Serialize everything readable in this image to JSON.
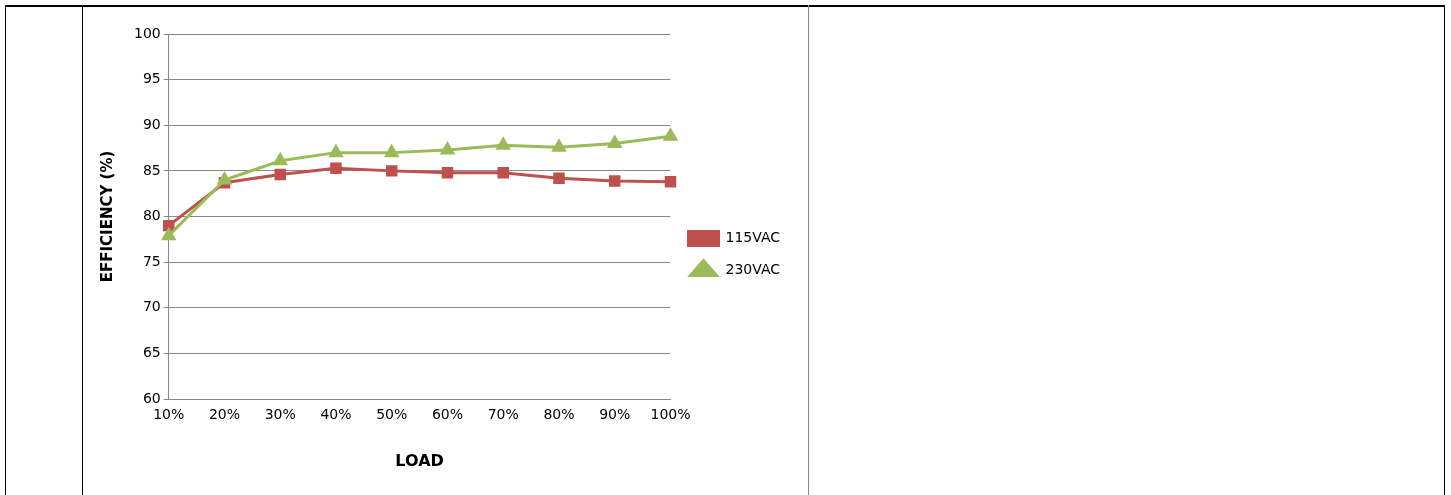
{
  "chart_data": {
    "type": "line",
    "xlabel": "LOAD",
    "ylabel": "EFFICIENCY (%)",
    "categories": [
      "10%",
      "20%",
      "30%",
      "40%",
      "50%",
      "60%",
      "70%",
      "80%",
      "90%",
      "100%"
    ],
    "series": [
      {
        "name": "115VAC",
        "color": "#c0504d",
        "marker": "square",
        "values": [
          79.0,
          83.7,
          84.6,
          85.3,
          85.0,
          84.8,
          84.8,
          84.2,
          83.9,
          83.8
        ]
      },
      {
        "name": "230VAC",
        "color": "#9bbb59",
        "marker": "triangle",
        "values": [
          77.9,
          84.0,
          86.1,
          87.0,
          87.0,
          87.3,
          87.8,
          87.6,
          88.0,
          88.8
        ]
      }
    ],
    "ylim": [
      60,
      100
    ],
    "yticks": [
      60,
      65,
      70,
      75,
      80,
      85,
      90,
      95,
      100
    ],
    "grid": "y",
    "legend": "right"
  }
}
